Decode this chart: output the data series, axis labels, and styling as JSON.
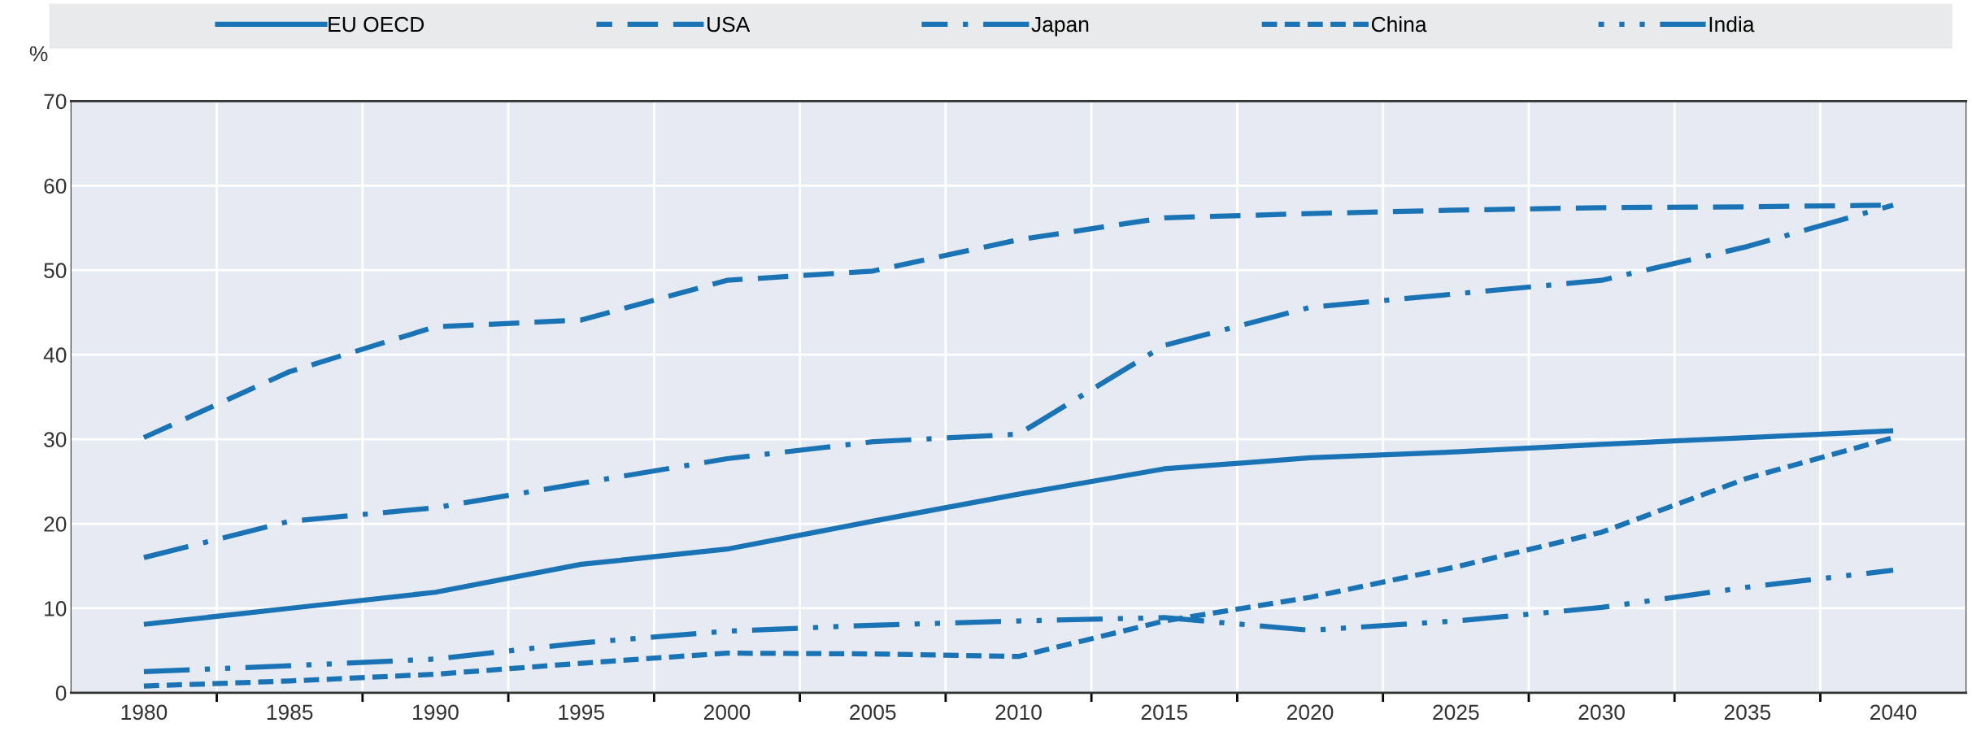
{
  "chart_data": {
    "type": "line",
    "ylabel": "%",
    "legend": "top",
    "grid": true,
    "marker": "none",
    "x": [
      1980,
      1985,
      1990,
      1995,
      2000,
      2005,
      2010,
      2015,
      2020,
      2025,
      2030,
      2035,
      2040
    ],
    "xlim": [
      1977.5,
      2042.5
    ],
    "xticks": [
      1980,
      {
        "value": 1982.5,
        "label": null
      },
      1985,
      {
        "value": 1987.5,
        "label": null
      },
      1990,
      {
        "value": 1992.5,
        "label": null
      },
      1995,
      {
        "value": 1997.5,
        "label": null
      },
      2000,
      {
        "value": 2002.5,
        "label": null
      },
      2005,
      {
        "value": 2007.5,
        "label": null
      },
      2010,
      {
        "value": 2012.5,
        "label": null
      },
      2015,
      {
        "value": 2017.5,
        "label": null
      },
      2020,
      {
        "value": 2022.5,
        "label": null
      },
      2025,
      {
        "value": 2027.5,
        "label": null
      },
      2030,
      {
        "value": 2032.5,
        "label": null
      },
      2035,
      {
        "value": 2037.5,
        "label": null
      },
      2040
    ],
    "ylim": [
      0,
      70
    ],
    "yticks": [
      0,
      10,
      20,
      30,
      40,
      50,
      60,
      70
    ],
    "series": [
      {
        "name": "EU OECD",
        "color": "#1a73b5",
        "line_style": "solid",
        "values": [
          8.1,
          10,
          11.9,
          15.2,
          17,
          20.3,
          23.5,
          26.5,
          27.8,
          28.5,
          29.4,
          30.2,
          31
        ]
      },
      {
        "name": "USA",
        "color": "#1a73b5",
        "line_style": "dashed",
        "values": [
          30.2,
          38,
          43.3,
          44.1,
          48.8,
          49.9,
          53.6,
          56.2,
          56.7,
          57.1,
          57.4,
          57.5,
          57.7
        ]
      },
      {
        "name": "Japan",
        "color": "#1a73b5",
        "line_style": "dashdot",
        "values": [
          16,
          20.3,
          21.9,
          24.8,
          27.7,
          29.7,
          30.6,
          41.1,
          45.6,
          47.2,
          48.8,
          52.8,
          57.7
        ]
      },
      {
        "name": "China",
        "color": "#1a73b5",
        "line_style": "shortdash",
        "values": [
          0.8,
          1.4,
          2.2,
          3.5,
          4.7,
          4.6,
          4.3,
          8.5,
          11.3,
          14.9,
          19,
          25.4,
          30.2
        ]
      },
      {
        "name": "India",
        "color": "#1a73b5",
        "line_style": "dashdotdot",
        "values": [
          2.5,
          3.2,
          4,
          5.9,
          7.3,
          8,
          8.5,
          8.9,
          7.4,
          8.5,
          10.1,
          12.5,
          14.5
        ]
      }
    ]
  }
}
